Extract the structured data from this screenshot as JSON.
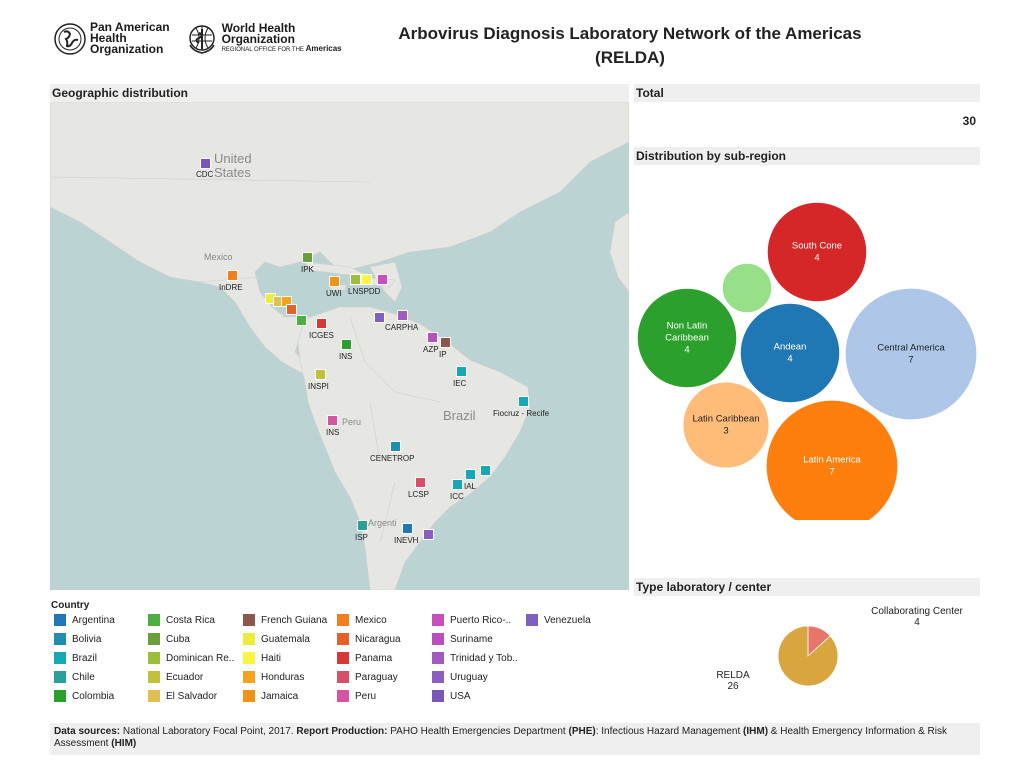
{
  "header": {
    "paho_logo": "Pan American Health Organization",
    "paho_lines": [
      "Pan American",
      "Health",
      "Organization"
    ],
    "who_lines": [
      "World Health",
      "Organization"
    ],
    "who_sub": "REGIONAL OFFICE FOR THE",
    "who_sub_bold": "Americas",
    "title_line1": "Arbovirus Diagnosis Laboratory Network of the Americas",
    "title_line2": "(RELDA)"
  },
  "sections": {
    "geo": "Geographic distribution",
    "total": "Total",
    "subregion": "Distribution by sub-region",
    "type": "Type laboratory / center"
  },
  "map": {
    "base_labels": [
      "United",
      "States",
      "Mexico",
      "Peru",
      "Brazil",
      "Argenti"
    ],
    "markers": [
      {
        "label": "CDC",
        "country": "USA"
      },
      {
        "label": "IPK",
        "country": "Cuba"
      },
      {
        "label": "InDRE",
        "country": "Mexico"
      },
      {
        "label": "UWI",
        "country": "Jamaica"
      },
      {
        "label": "LNSPDD",
        "country": "Dominican Re.."
      },
      {
        "label": "",
        "country": "Haiti"
      },
      {
        "label": "",
        "country": "Puerto Rico-.."
      },
      {
        "label": "",
        "country": "Guatemala"
      },
      {
        "label": "",
        "country": "El Salvador"
      },
      {
        "label": "",
        "country": "Honduras"
      },
      {
        "label": "",
        "country": "Nicaragua"
      },
      {
        "label": "",
        "country": "Costa Rica"
      },
      {
        "label": "ICGES",
        "country": "Panama"
      },
      {
        "label": "",
        "country": "Venezuela"
      },
      {
        "label": "CARPHA",
        "country": "Trinidad y Tob.."
      },
      {
        "label": "AZP",
        "country": "Suriname"
      },
      {
        "label": "IP",
        "country": "French Guiana"
      },
      {
        "label": "INS",
        "country": "Colombia"
      },
      {
        "label": "INSPI",
        "country": "Ecuador"
      },
      {
        "label": "IEC",
        "country": "Brazil"
      },
      {
        "label": "Fiocruz - Recife",
        "country": "Brazil"
      },
      {
        "label": "INS",
        "country": "Peru"
      },
      {
        "label": "CENETROP",
        "country": "Bolivia"
      },
      {
        "label": "IAL",
        "country": "Brazil"
      },
      {
        "label": "",
        "country": "Brazil"
      },
      {
        "label": "ICC",
        "country": "Brazil"
      },
      {
        "label": "LCSP",
        "country": "Paraguay"
      },
      {
        "label": "ISP",
        "country": "Chile"
      },
      {
        "label": "INEVH",
        "country": "Argentina"
      },
      {
        "label": "",
        "country": "Uruguay"
      }
    ]
  },
  "total": {
    "value": "30"
  },
  "chart_data": [
    {
      "type": "bubble",
      "title": "Distribution by sub-region",
      "series": [
        {
          "name": "South Cone",
          "value": 4,
          "color": "#d62728",
          "label": "South Cone"
        },
        {
          "name": "Non Latin Caribbean",
          "value": 4,
          "color": "#2ca02c",
          "label": "Non Latin Caribbean"
        },
        {
          "name": "Andean",
          "value": 4,
          "color": "#1f77b4",
          "label": "Andean"
        },
        {
          "name": "Central America",
          "value": 7,
          "color": "#aec7e8",
          "label": "Central America"
        },
        {
          "name": "Latin Caribbean",
          "value": 3,
          "color": "#ffbb78",
          "label": "Latin Caribbean"
        },
        {
          "name": "Latin America",
          "value": 7,
          "color": "#ff7f0e",
          "label": "Latin America"
        },
        {
          "name": "",
          "value": 1,
          "color": "#98df8a",
          "label": ""
        }
      ]
    },
    {
      "type": "pie",
      "title": "Type laboratory / center",
      "slices": [
        {
          "name": "Collaborating Center",
          "value": 4,
          "color": "#e8756a"
        },
        {
          "name": "RELDA",
          "value": 26,
          "color": "#d9a53e"
        }
      ]
    }
  ],
  "legend": {
    "title": "Country",
    "items": [
      {
        "name": "Argentina",
        "color": "#1f77b4"
      },
      {
        "name": "Bolivia",
        "color": "#1f8fb0"
      },
      {
        "name": "Brazil",
        "color": "#17a8b5"
      },
      {
        "name": "Chile",
        "color": "#2aa198"
      },
      {
        "name": "Colombia",
        "color": "#2ca02c"
      },
      {
        "name": "Costa Rica",
        "color": "#4caf3f"
      },
      {
        "name": "Cuba",
        "color": "#6b9e3a"
      },
      {
        "name": "Dominican Re..",
        "color": "#9bbf3a"
      },
      {
        "name": "Ecuador",
        "color": "#c2c23a"
      },
      {
        "name": "El Salvador",
        "color": "#e0c050"
      },
      {
        "name": "French Guiana",
        "color": "#8c564b"
      },
      {
        "name": "Guatemala",
        "color": "#eded3a"
      },
      {
        "name": "Haiti",
        "color": "#f9f542"
      },
      {
        "name": "Honduras",
        "color": "#f5a31a"
      },
      {
        "name": "Jamaica",
        "color": "#f29216"
      },
      {
        "name": "Mexico",
        "color": "#f07f20"
      },
      {
        "name": "Nicaragua",
        "color": "#e4612a"
      },
      {
        "name": "Panama",
        "color": "#d63a36"
      },
      {
        "name": "Paraguay",
        "color": "#d94f6a"
      },
      {
        "name": "Peru",
        "color": "#d654a0"
      },
      {
        "name": "Puerto Rico-..",
        "color": "#c94fc0"
      },
      {
        "name": "Suriname",
        "color": "#b94fbf"
      },
      {
        "name": "Trinidad y Tob..",
        "color": "#a35bbf"
      },
      {
        "name": "Uruguay",
        "color": "#8a5fbf"
      },
      {
        "name": "USA",
        "color": "#7a55b8"
      },
      {
        "name": "Venezuela",
        "color": "#7e5fc2"
      }
    ]
  },
  "pie_labels": {
    "cc_name": "Collaborating Center",
    "cc_value": "4",
    "relda_name": "RELDA",
    "relda_value": "26"
  },
  "footer": {
    "ds_bold": "Data sources:",
    "ds_text": " National Laboratory  Focal Point, 2017. ",
    "rp_bold": "Report Production:",
    "rp_text": " PAHO Health Emergencies Department ",
    "phe": "(PHE)",
    "colon": ": Infectious Hazard Management ",
    "ihm": "(IHM)",
    "amp": " & Health Emergency Information & Risk Assessment ",
    "him": "(HIM)"
  }
}
